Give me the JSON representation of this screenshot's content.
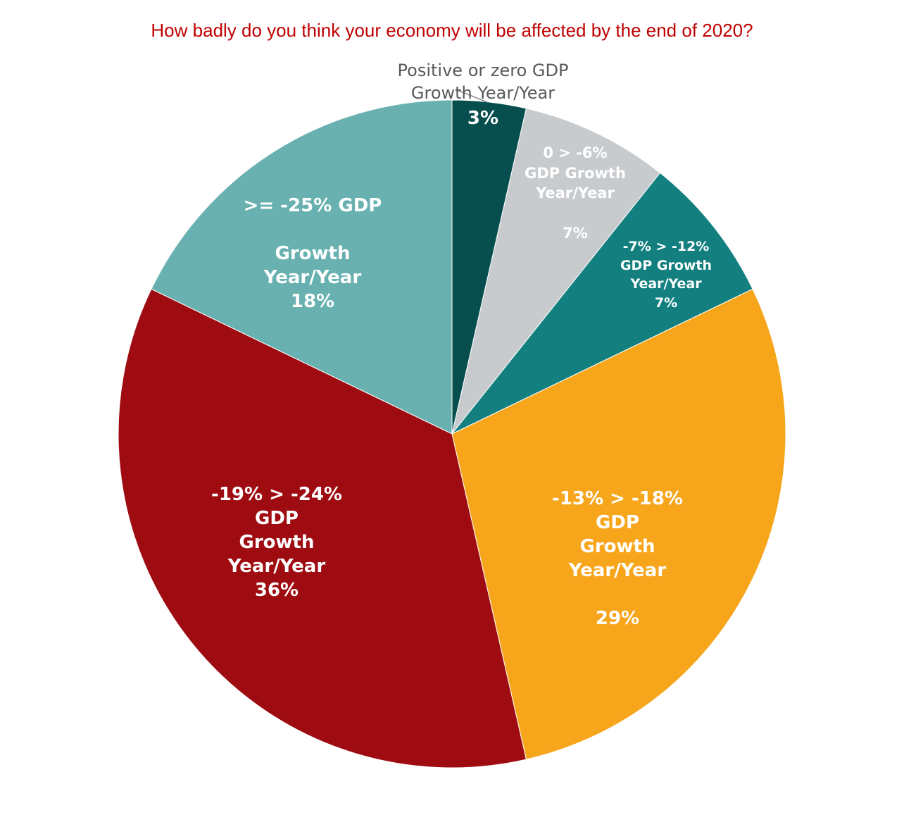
{
  "chart_data": {
    "type": "pie",
    "title": "How badly do you think your economy will be affected by the end of 2020?",
    "start": "top, clockwise",
    "slices": [
      {
        "name": "Positive or zero GDP Growth Year/Year",
        "value": 1,
        "percent_label": "3%",
        "label": "3%",
        "outer_label": "Positive or zero GDP\nGrowth Year/Year",
        "color": "#074f4f"
      },
      {
        "name": "0 > -6% GDP Growth Year/Year",
        "value": 2,
        "percent_label": "7%",
        "label": "0 > -6%\nGDP Growth\nYear/Year\n\n7%",
        "color": "#c8cbce"
      },
      {
        "name": "-7% > -12% GDP Growth Year/Year",
        "value": 2,
        "percent_label": "7%",
        "label": "-7% > -12%\nGDP Growth\nYear/Year\n7%",
        "color": "#137f7f"
      },
      {
        "name": "-13% > -18% GDP Growth Year/Year",
        "value": 8,
        "percent_label": "29%",
        "label": "-13% > -18%\nGDP\nGrowth\nYear/Year\n\n29%",
        "color": "#f7a61c"
      },
      {
        "name": "-19% > -24% GDP Growth Year/Year",
        "value": 10,
        "percent_label": "36%",
        "label": "-19% > -24%\nGDP\nGrowth\nYear/Year\n36%",
        "color": "#9e0c12"
      },
      {
        "name": ">= -25% GDP Growth Year/Year",
        "value": 5,
        "percent_label": "18%",
        "label": ">= -25% GDP\n\nGrowth\nYear/Year\n18%",
        "color": "#68b1b0"
      }
    ]
  }
}
